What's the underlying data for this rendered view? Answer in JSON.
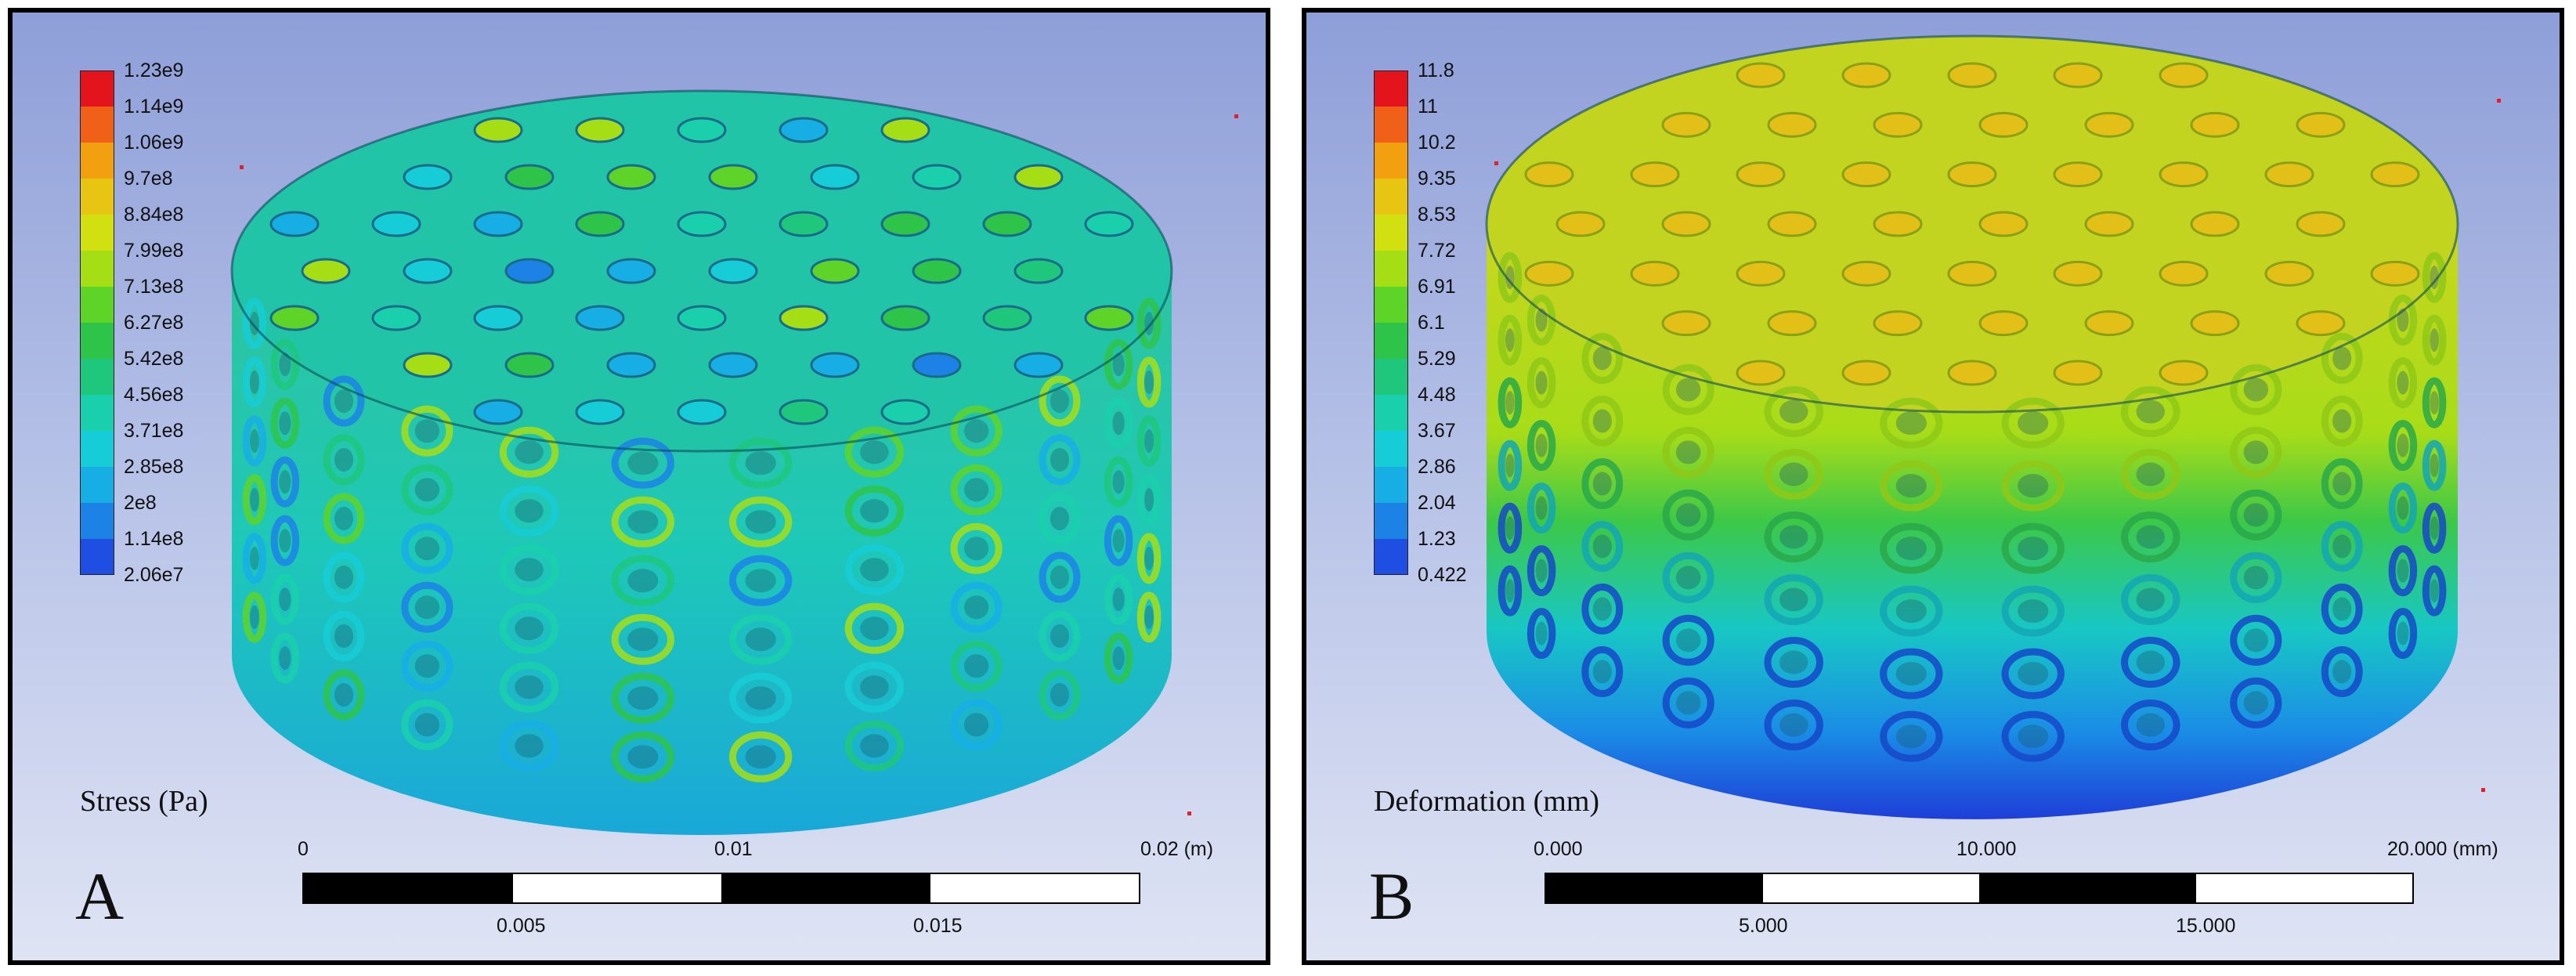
{
  "panels": [
    {
      "id": "A",
      "letter": "A",
      "legend_title": "Stress (Pa)",
      "legend_ticks": [
        "1.23e9",
        "1.14e9",
        "1.06e9",
        "9.7e8",
        "8.84e8",
        "7.99e8",
        "7.13e8",
        "6.27e8",
        "5.42e8",
        "4.56e8",
        "3.71e8",
        "2.85e8",
        "2e8",
        "1.14e8",
        "2.06e7"
      ],
      "legend_colors": [
        "#e3141b",
        "#f06018",
        "#f2a010",
        "#e8c512",
        "#d2e012",
        "#a6de16",
        "#5ed428",
        "#2ec44a",
        "#1ec77c",
        "#1ad0ac",
        "#16ccd6",
        "#17aee6",
        "#1c82e6",
        "#1e4ee2",
        "#1414d8"
      ],
      "scale_top": [
        "0",
        "0.01",
        "0.02 (m)"
      ],
      "scale_bottom": [
        "0.005",
        "0.015"
      ],
      "mesh_palette": [
        "#1ad0ac",
        "#16ccd6",
        "#2ec44a",
        "#17aee6",
        "#5ed428",
        "#1ec77c",
        "#1c82e6",
        "#a6de16"
      ]
    },
    {
      "id": "B",
      "letter": "B",
      "legend_title": "Deformation (mm)",
      "legend_ticks": [
        "11.8",
        "11",
        "10.2",
        "9.35",
        "8.53",
        "7.72",
        "6.91",
        "6.1",
        "5.29",
        "4.48",
        "3.67",
        "2.86",
        "2.04",
        "1.23",
        "0.422"
      ],
      "legend_colors": [
        "#e3141b",
        "#f06018",
        "#f2a010",
        "#e8c512",
        "#d2e012",
        "#a6de16",
        "#5ed428",
        "#2ec44a",
        "#1ec77c",
        "#1ad0ac",
        "#16ccd6",
        "#17aee6",
        "#1c82e6",
        "#1e4ee2",
        "#1414d8"
      ],
      "scale_top": [
        "0.000",
        "10.000",
        "20.000 (mm)"
      ],
      "scale_bottom": [
        "5.000",
        "15.000"
      ],
      "mesh_palette": [
        "#c5d820",
        "#a6de16",
        "#5ed428",
        "#2ec44a",
        "#1ec77c",
        "#16ccd6",
        "#17aee6",
        "#1c82e6",
        "#1e4ee2"
      ]
    }
  ]
}
